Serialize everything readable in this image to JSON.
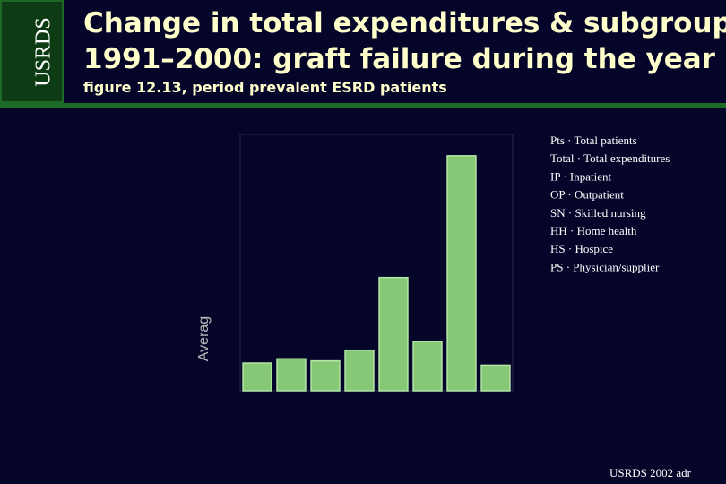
{
  "header": {
    "logo": "USRDS",
    "title_lines": [
      "Change in total expenditures & subgroups,",
      "1991–2000: graft failure during the year"
    ],
    "subtitle": "figure 12.13, period prevalent ESRD patients"
  },
  "chart_data": {
    "type": "bar",
    "y_label": "Averag",
    "categories": [
      null,
      null,
      null,
      null,
      null,
      null,
      null,
      null
    ],
    "values": [
      0.65,
      0.75,
      0.7,
      0.95,
      2.65,
      1.15,
      5.5,
      0.6
    ],
    "color": "#86c876",
    "ylim": [
      0,
      6
    ]
  },
  "legend_notes": [
    "Pts · Total patients",
    "Total · Total expenditures",
    "IP · Inpatient",
    "OP · Outpatient",
    "SN · Skilled nursing",
    "HH · Home health",
    "HS · Hospice",
    "PS · Physician/supplier"
  ],
  "footer": "USRDS 2002 adr"
}
